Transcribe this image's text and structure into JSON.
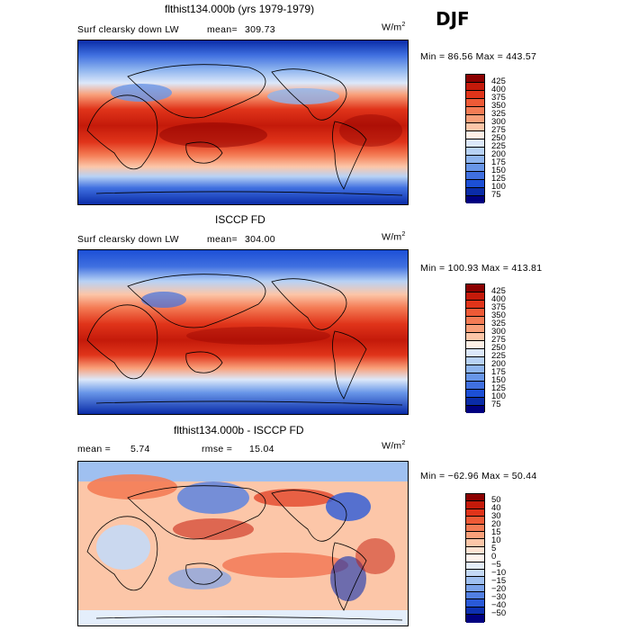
{
  "season": "DJF",
  "panels": [
    {
      "title": "flthist134.000b (yrs 1979-1979)",
      "left_label": "Surf clearsky down LW",
      "stat_label": "mean=",
      "stat_value": "309.73",
      "stat2_label": "",
      "stat2_value": "",
      "units": "W/m",
      "units_sup": "2",
      "minmax": "Min =  86.56 Max = 443.57",
      "colorbar": {
        "colors": [
          "#8b0000",
          "#c41a0a",
          "#e0341a",
          "#ee5a36",
          "#f47c55",
          "#f9a07a",
          "#fcc6a8",
          "#fff0e6",
          "#dce8fa",
          "#b8d2f5",
          "#8fb5ef",
          "#6896e8",
          "#4070e0",
          "#1c4fd6",
          "#0a2ca8",
          "#000080"
        ],
        "ticks": [
          "425",
          "400",
          "375",
          "350",
          "325",
          "300",
          "275",
          "250",
          "225",
          "200",
          "175",
          "150",
          "125",
          "100",
          "75"
        ]
      }
    },
    {
      "title": "ISCCP FD",
      "left_label": "Surf clearsky down LW",
      "stat_label": "mean=",
      "stat_value": "304.00",
      "stat2_label": "",
      "stat2_value": "",
      "units": "W/m",
      "units_sup": "2",
      "minmax": "Min = 100.93 Max = 413.81",
      "colorbar": {
        "colors": [
          "#8b0000",
          "#c41a0a",
          "#e0341a",
          "#ee5a36",
          "#f47c55",
          "#f9a07a",
          "#fcc6a8",
          "#fff0e6",
          "#dce8fa",
          "#b8d2f5",
          "#8fb5ef",
          "#6896e8",
          "#4070e0",
          "#1c4fd6",
          "#0a2ca8",
          "#000080"
        ],
        "ticks": [
          "425",
          "400",
          "375",
          "350",
          "325",
          "300",
          "275",
          "250",
          "225",
          "200",
          "175",
          "150",
          "125",
          "100",
          "75"
        ]
      }
    },
    {
      "title": "flthist134.000b - ISCCP FD",
      "left_label": "",
      "stat_label": "mean =",
      "stat_value": "5.74",
      "stat2_label": "rmse =",
      "stat2_value": "15.04",
      "units": "W/m",
      "units_sup": "2",
      "minmax": "Min = −62.96 Max =  50.44",
      "colorbar": {
        "colors": [
          "#8b0000",
          "#c41a0a",
          "#e0341a",
          "#ee5a36",
          "#f47c55",
          "#f9a07a",
          "#fcc6a8",
          "#fde3d3",
          "#fff4ee",
          "#e4eefb",
          "#c4d9f6",
          "#9fc0f0",
          "#7aa2ea",
          "#5280e2",
          "#2a5ad8",
          "#0d30b0",
          "#000080"
        ],
        "ticks": [
          "50",
          "40",
          "30",
          "20",
          "15",
          "10",
          "5",
          "0",
          "−5",
          "−10",
          "−15",
          "−20",
          "−30",
          "−40",
          "−50"
        ]
      }
    }
  ],
  "chart_data": [
    {
      "type": "heatmap",
      "title": "flthist134.000b (yrs 1979-1979)",
      "variable": "Surf clearsky down LW",
      "units": "W/m2",
      "mean": 309.73,
      "min": 86.56,
      "max": 443.57,
      "contour_levels": [
        75,
        100,
        125,
        150,
        175,
        200,
        225,
        250,
        275,
        300,
        325,
        350,
        375,
        400,
        425
      ]
    },
    {
      "type": "heatmap",
      "title": "ISCCP FD",
      "variable": "Surf clearsky down LW",
      "units": "W/m2",
      "mean": 304.0,
      "min": 100.93,
      "max": 413.81,
      "contour_levels": [
        75,
        100,
        125,
        150,
        175,
        200,
        225,
        250,
        275,
        300,
        325,
        350,
        375,
        400,
        425
      ]
    },
    {
      "type": "heatmap",
      "title": "flthist134.000b - ISCCP FD",
      "units": "W/m2",
      "mean": 5.74,
      "rmse": 15.04,
      "min": -62.96,
      "max": 50.44,
      "contour_levels": [
        -50,
        -40,
        -30,
        -20,
        -15,
        -10,
        -5,
        0,
        5,
        10,
        15,
        20,
        30,
        40,
        50
      ]
    }
  ]
}
